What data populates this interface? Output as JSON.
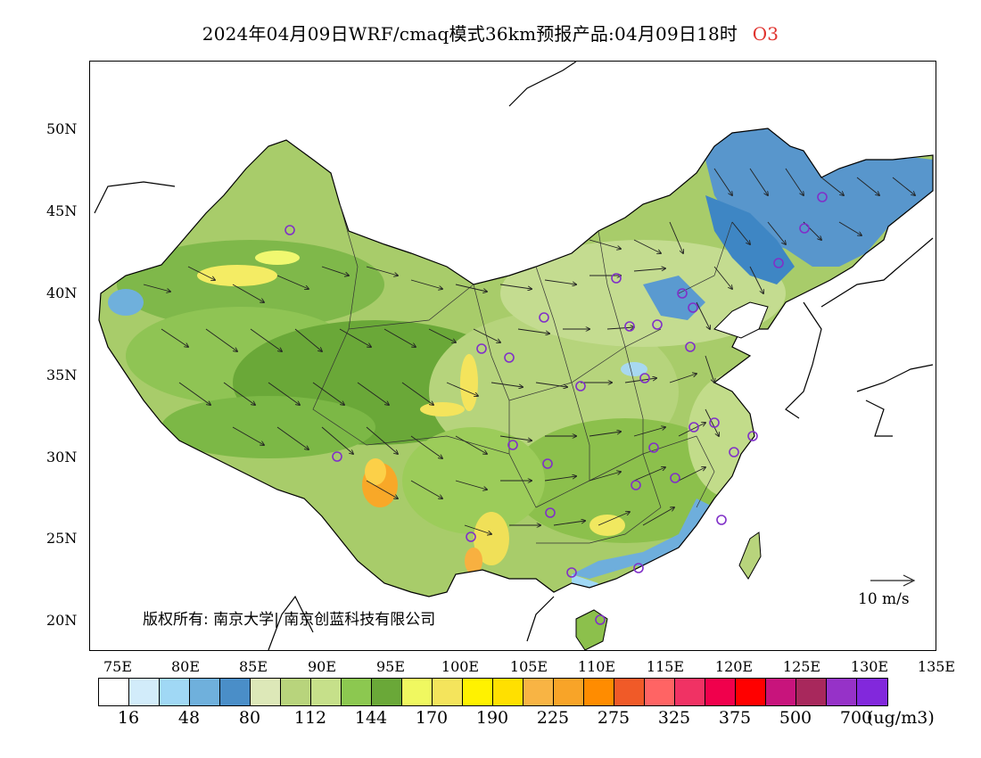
{
  "title": {
    "main": "2024年04月09日WRF/cmaq模式36km预报产品:04月09日18时",
    "pollutant": "O3"
  },
  "axes": {
    "lat_ticks": [
      "50N",
      "45N",
      "40N",
      "35N",
      "30N",
      "25N",
      "20N"
    ],
    "lon_ticks": [
      "75E",
      "80E",
      "85E",
      "90E",
      "95E",
      "100E",
      "105E",
      "110E",
      "115E",
      "120E",
      "125E",
      "130E",
      "135E"
    ]
  },
  "copyright": "版权所有: 南京大学| 南京创蓝科技有限公司",
  "wind_reference": "10 m/s",
  "legend": {
    "colors": [
      "#ffffff",
      "#d2ecfa",
      "#a0d8f5",
      "#6fb0dc",
      "#4a8ec8",
      "#dde8b8",
      "#b8d47c",
      "#c6e08a",
      "#8cc850",
      "#6aa838",
      "#f0f860",
      "#f4e45c",
      "#fff200",
      "#ffe000",
      "#f8b444",
      "#f8a428",
      "#ff8c00",
      "#f05a28",
      "#ff6464",
      "#f03264",
      "#f0004c",
      "#ff0000",
      "#c8147c",
      "#a8285c",
      "#9632c8",
      "#8228dc"
    ],
    "labels": [
      "16",
      "48",
      "80",
      "112",
      "144",
      "170",
      "190",
      "225",
      "275",
      "325",
      "375",
      "500",
      "700"
    ],
    "units": "(ug/m3)"
  },
  "icons": {
    "station_marker": "circle-station-icon",
    "wind_arrow": "wind-vector-icon"
  }
}
